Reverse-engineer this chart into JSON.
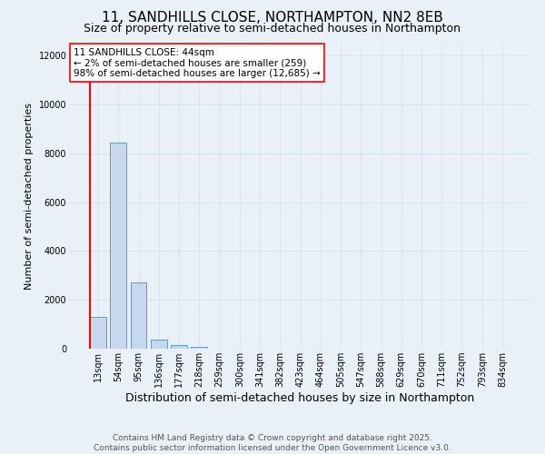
{
  "title_line1": "11, SANDHILLS CLOSE, NORTHAMPTON, NN2 8EB",
  "title_line2": "Size of property relative to semi-detached houses in Northampton",
  "xlabel": "Distribution of semi-detached houses by size in Northampton",
  "ylabel": "Number of semi-detached properties",
  "categories": [
    "13sqm",
    "54sqm",
    "95sqm",
    "136sqm",
    "177sqm",
    "218sqm",
    "259sqm",
    "300sqm",
    "341sqm",
    "382sqm",
    "423sqm",
    "464sqm",
    "505sqm",
    "547sqm",
    "588sqm",
    "629sqm",
    "670sqm",
    "711sqm",
    "752sqm",
    "793sqm",
    "834sqm"
  ],
  "values": [
    1300,
    8450,
    2700,
    380,
    150,
    70,
    0,
    0,
    0,
    0,
    0,
    0,
    0,
    0,
    0,
    0,
    0,
    0,
    0,
    0,
    0
  ],
  "bar_color": "#c5d8ed",
  "bar_edge_color": "#5b9bd5",
  "annotation_text": "11 SANDHILLS CLOSE: 44sqm\n← 2% of semi-detached houses are smaller (259)\n98% of semi-detached houses are larger (12,685) →",
  "ylim": [
    0,
    12500
  ],
  "yticks": [
    0,
    2000,
    4000,
    6000,
    8000,
    10000,
    12000
  ],
  "background_color": "#eaf0f8",
  "grid_color": "#d8e4f0",
  "footer_line1": "Contains HM Land Registry data © Crown copyright and database right 2025.",
  "footer_line2": "Contains public sector information licensed under the Open Government Licence v3.0.",
  "title_fontsize": 11,
  "subtitle_fontsize": 9,
  "xlabel_fontsize": 9,
  "ylabel_fontsize": 8,
  "tick_fontsize": 7,
  "annotation_fontsize": 7.5,
  "footer_fontsize": 6.5
}
